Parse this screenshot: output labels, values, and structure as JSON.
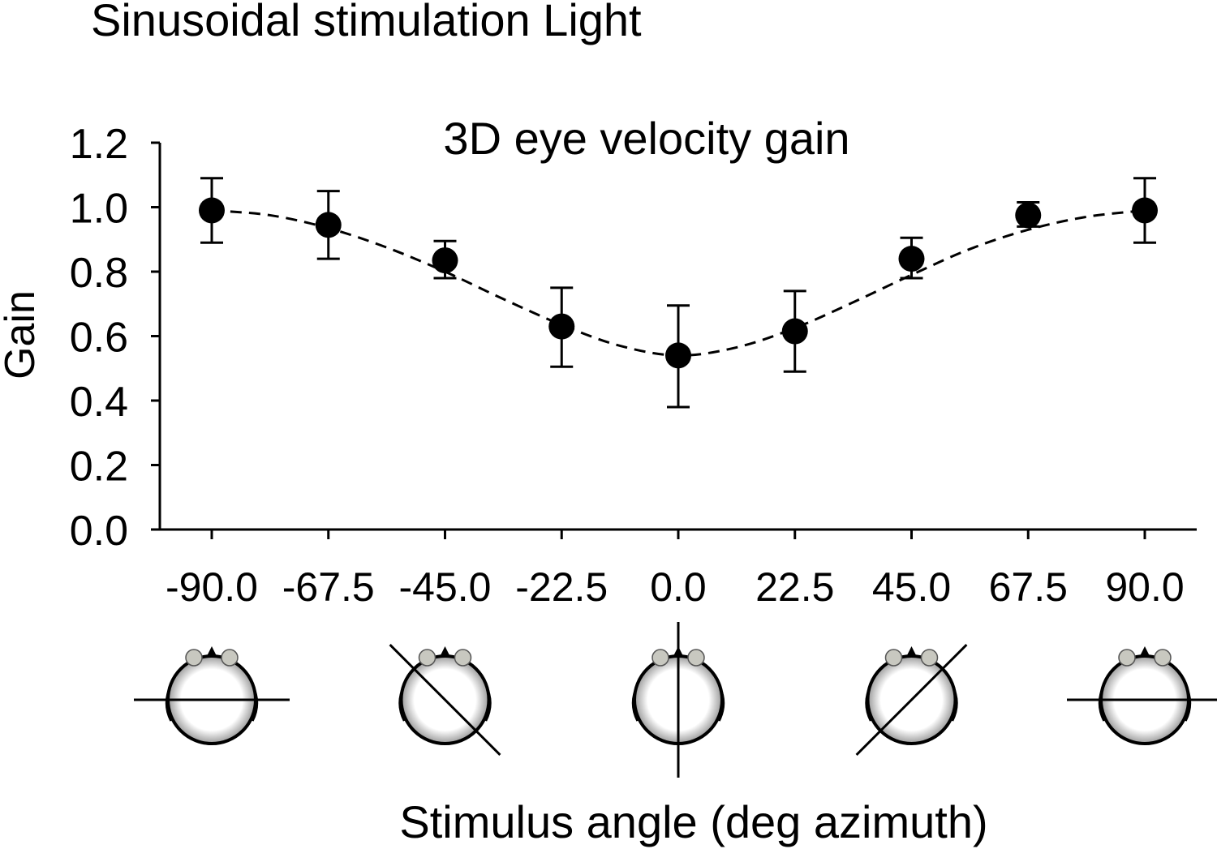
{
  "figure": {
    "heading": "Sinusoidal stimulation Light"
  },
  "chart_data": {
    "type": "scatter",
    "title": "3D eye velocity gain",
    "xlabel": "Stimulus angle (deg azimuth)",
    "ylabel": "Gain",
    "ylim": [
      0,
      1.2
    ],
    "yticks": [
      "0.0",
      "0.2",
      "0.4",
      "0.6",
      "0.8",
      "1.0",
      "1.2"
    ],
    "x_categories": [
      "-90.0",
      "-67.5",
      "-45.0",
      "-22.5",
      "0.0",
      "22.5",
      "45.0",
      "67.5",
      "90.0"
    ],
    "series": [
      {
        "values": [
          0.99,
          0.945,
          0.835,
          0.63,
          0.54,
          0.615,
          0.84,
          0.975,
          0.99
        ],
        "error_low": [
          0.89,
          0.84,
          0.78,
          0.505,
          0.38,
          0.49,
          0.78,
          0.94,
          0.89
        ],
        "error_high": [
          1.09,
          1.05,
          0.895,
          0.75,
          0.695,
          0.74,
          0.905,
          1.015,
          1.09
        ]
      }
    ],
    "fit_curve": {
      "style": "dashed",
      "x": [
        -90,
        -78.75,
        -67.5,
        -56.25,
        -45,
        -33.75,
        -22.5,
        -11.25,
        0,
        11.25,
        22.5,
        33.75,
        45,
        56.25,
        67.5,
        78.75,
        90
      ],
      "y": [
        0.99,
        0.975,
        0.935,
        0.875,
        0.8,
        0.715,
        0.635,
        0.57,
        0.54,
        0.565,
        0.625,
        0.705,
        0.79,
        0.87,
        0.93,
        0.97,
        0.99
      ]
    },
    "head_icons": [
      {
        "angle": "-90.0",
        "line_deg": -90
      },
      {
        "angle": "-45.0",
        "line_deg": -45
      },
      {
        "angle": "0.0",
        "line_deg": 0
      },
      {
        "angle": "45.0",
        "line_deg": 45
      },
      {
        "angle": "90.0",
        "line_deg": 90
      }
    ],
    "grid": false,
    "legend": "none",
    "colors": {
      "marker": "#000000",
      "curve": "#000000",
      "head_dots": "#c8c8c0"
    }
  }
}
